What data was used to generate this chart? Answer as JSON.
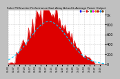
{
  "title": "Solar PV/Inverter Performance East Array Actual & Average Power Output",
  "bg_color": "#c0c0c0",
  "plot_bg": "#ffffff",
  "grid_color": "#aaaaaa",
  "bar_color": "#dd0000",
  "bar_edge_color": "#dd0000",
  "avg_line_color": "#00ccff",
  "legend_entries": [
    {
      "label": "Actual",
      "color": "#0000ff"
    },
    {
      "label": "Avg",
      "color": "#ff0000"
    },
    {
      "label": "A",
      "color": "#00cc00"
    },
    {
      "label": "B",
      "color": "#ff00ff"
    },
    {
      "label": "C",
      "color": "#ff8800"
    },
    {
      "label": "D",
      "color": "#cc0000"
    },
    {
      "label": "E",
      "color": "#0088ff"
    },
    {
      "label": "F",
      "color": "#884400"
    }
  ],
  "title_color": "#000000",
  "axis_color": "#000000",
  "tick_color": "#000000",
  "ylim": [
    0,
    1100
  ],
  "ytick_vals": [
    0,
    200,
    400,
    600,
    800,
    1000
  ],
  "ytick_labels": [
    "0",
    "200",
    "400",
    "600",
    "800",
    "1k"
  ],
  "n_points": 72,
  "peak_idx": 30,
  "peak_val": 1050,
  "sigma": 14.0,
  "seed": 7
}
